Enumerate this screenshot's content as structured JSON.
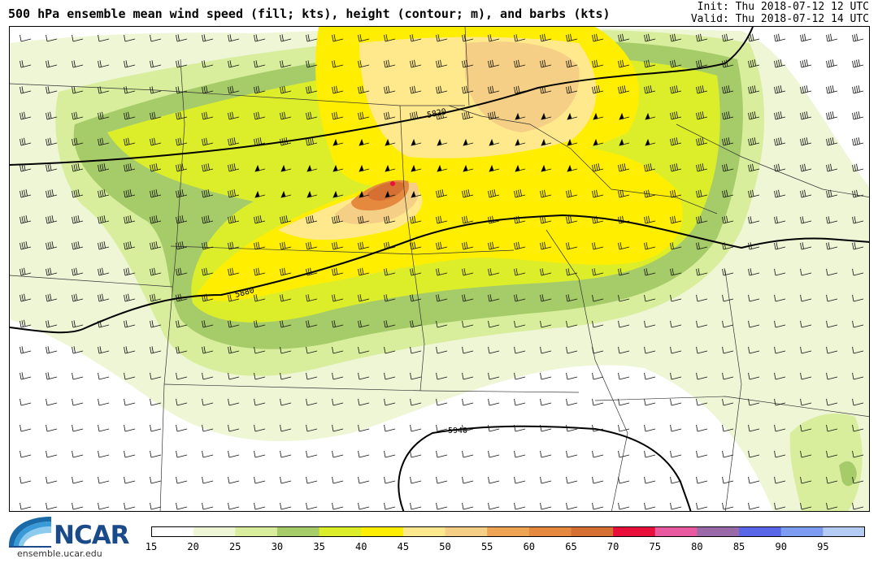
{
  "header": {
    "title": "500 hPa ensemble mean wind speed (fill; kts), height (contour; m), and barbs (kts)",
    "init": "Init: Thu 2018-07-12 12 UTC",
    "valid": "Valid: Thu 2018-07-12 14 UTC"
  },
  "map": {
    "contour_labels": [
      "5820",
      "5880",
      "5940"
    ]
  },
  "colorbar": {
    "labels": [
      "15",
      "20",
      "25",
      "30",
      "35",
      "40",
      "45",
      "50",
      "55",
      "60",
      "65",
      "70",
      "75",
      "80",
      "85",
      "90",
      "95"
    ],
    "colors": [
      "#ffffff",
      "#eef6d6",
      "#d8ee9c",
      "#a6cc6a",
      "#dcee2a",
      "#ffee00",
      "#ffe98c",
      "#f6cf86",
      "#eea452",
      "#e4893e",
      "#d57032",
      "#e8103a",
      "#e85aa0",
      "#9a6aa8",
      "#5a66e8",
      "#7c9cf2",
      "#b4ccf4"
    ]
  },
  "footer": {
    "logo_name": "NCAR",
    "logo_url": "ensemble.ucar.edu"
  }
}
